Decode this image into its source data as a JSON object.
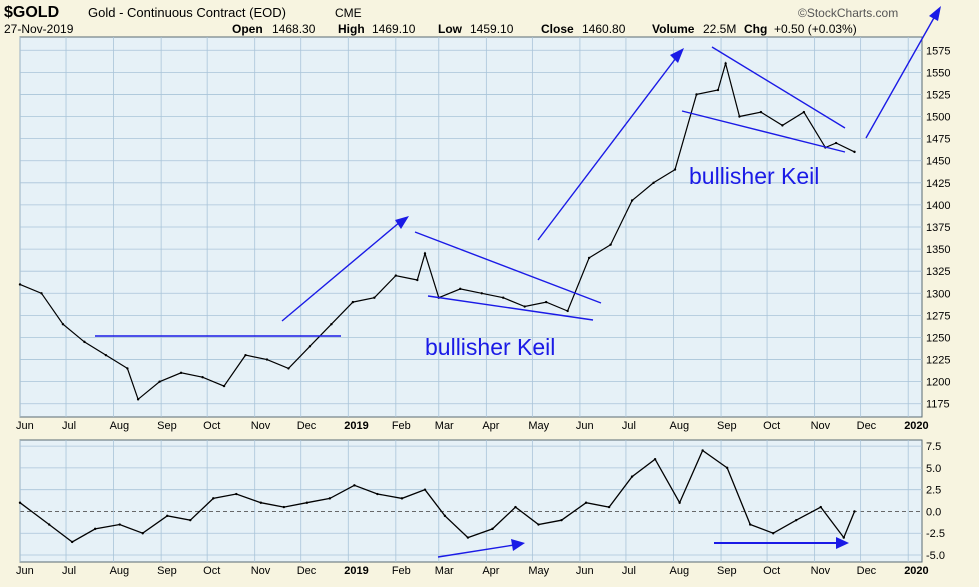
{
  "header": {
    "symbol": "$GOLD",
    "description": "Gold - Continuous Contract (EOD)",
    "exchange": "CME",
    "source": "©StockCharts.com",
    "date": "27-Nov-2019",
    "open_label": "Open",
    "open": "1468.30",
    "high_label": "High",
    "high": "1469.10",
    "low_label": "Low",
    "low": "1459.10",
    "close_label": "Close",
    "close": "1460.80",
    "volume_label": "Volume",
    "volume": "22.5M",
    "chg_label": "Chg",
    "chg": "+0.50 (+0.03%)"
  },
  "colors": {
    "background": "#f7f4e0",
    "panel": "#e6f1f7",
    "grid": "#a9c4d9",
    "price": "#000000",
    "annotation": "#1a1ae6"
  },
  "annotations": {
    "keil_1": "bullisher Keil",
    "keil_2": "bullisher Keil"
  },
  "chart_data": [
    {
      "type": "line",
      "panel": "price",
      "ylim": [
        1160,
        1590
      ],
      "yticks": [
        1175,
        1200,
        1225,
        1250,
        1275,
        1300,
        1325,
        1350,
        1375,
        1400,
        1425,
        1450,
        1475,
        1500,
        1525,
        1550,
        1575
      ],
      "x_tick_labels": [
        "Jun",
        "Jul",
        "Aug",
        "Sep",
        "Oct",
        "Nov",
        "Dec",
        "2019",
        "Feb",
        "Mar",
        "Apr",
        "May",
        "Jun",
        "Jul",
        "Aug",
        "Sep",
        "Oct",
        "Nov",
        "Dec",
        "2020"
      ],
      "x_range": [
        "2018-06-01",
        "2020-01-10"
      ],
      "series": [
        {
          "x": [
            "2018-06-01",
            "2018-06-15",
            "2018-06-29",
            "2018-07-13",
            "2018-07-27",
            "2018-08-10",
            "2018-08-17",
            "2018-08-31",
            "2018-09-14",
            "2018-09-28",
            "2018-10-12",
            "2018-10-26",
            "2018-11-09",
            "2018-11-23",
            "2018-12-07",
            "2018-12-21",
            "2019-01-04",
            "2019-01-18",
            "2019-02-01",
            "2019-02-15",
            "2019-02-20",
            "2019-03-01",
            "2019-03-15",
            "2019-03-29",
            "2019-04-12",
            "2019-04-26",
            "2019-05-10",
            "2019-05-24",
            "2019-06-07",
            "2019-06-21",
            "2019-07-05",
            "2019-07-19",
            "2019-08-02",
            "2019-08-16",
            "2019-08-30",
            "2019-09-04",
            "2019-09-13",
            "2019-09-27",
            "2019-10-11",
            "2019-10-25",
            "2019-11-08",
            "2019-11-15",
            "2019-11-27"
          ],
          "values": [
            1310,
            1300,
            1265,
            1245,
            1230,
            1215,
            1180,
            1200,
            1210,
            1205,
            1195,
            1230,
            1225,
            1215,
            1240,
            1265,
            1290,
            1295,
            1320,
            1315,
            1345,
            1295,
            1305,
            1300,
            1295,
            1285,
            1290,
            1280,
            1340,
            1355,
            1405,
            1425,
            1440,
            1525,
            1530,
            1560,
            1500,
            1505,
            1490,
            1505,
            1465,
            1470,
            1460
          ]
        }
      ],
      "annotations": [
        {
          "text": "bullisher Keil",
          "location": "under Feb–May 2019 wedge"
        },
        {
          "text": "bullisher Keil",
          "location": "under Sep–Nov 2019 wedge"
        }
      ],
      "grid": true
    },
    {
      "type": "line",
      "panel": "oscillator",
      "ylim": [
        -5.8,
        8.2
      ],
      "yticks": [
        -5.0,
        -2.5,
        0.0,
        2.5,
        5.0,
        7.5
      ],
      "x_tick_labels": [
        "Jun",
        "Jul",
        "Aug",
        "Sep",
        "Oct",
        "Nov",
        "Dec",
        "2019",
        "Feb",
        "Mar",
        "Apr",
        "May",
        "Jun",
        "Jul",
        "Aug",
        "Sep",
        "Oct",
        "Nov",
        "Dec",
        "2020"
      ],
      "x_range": [
        "2018-06-01",
        "2020-01-10"
      ],
      "series": [
        {
          "x": [
            "2018-06-01",
            "2018-06-20",
            "2018-07-05",
            "2018-07-20",
            "2018-08-05",
            "2018-08-20",
            "2018-09-05",
            "2018-09-20",
            "2018-10-05",
            "2018-10-20",
            "2018-11-05",
            "2018-11-20",
            "2018-12-05",
            "2018-12-20",
            "2019-01-05",
            "2019-01-20",
            "2019-02-05",
            "2019-02-20",
            "2019-03-05",
            "2019-03-20",
            "2019-04-05",
            "2019-04-20",
            "2019-05-05",
            "2019-05-20",
            "2019-06-05",
            "2019-06-20",
            "2019-07-05",
            "2019-07-20",
            "2019-08-05",
            "2019-08-20",
            "2019-09-05",
            "2019-09-20",
            "2019-10-05",
            "2019-10-20",
            "2019-11-05",
            "2019-11-20",
            "2019-11-27"
          ],
          "values": [
            1.0,
            -1.5,
            -3.5,
            -2.0,
            -1.5,
            -2.5,
            -0.5,
            -1.0,
            1.5,
            2.0,
            1.0,
            0.5,
            1.0,
            1.5,
            3.0,
            2.0,
            1.5,
            2.5,
            -0.5,
            -3.0,
            -2.0,
            0.5,
            -1.5,
            -1.0,
            1.0,
            0.5,
            4.0,
            6.0,
            1.0,
            7.0,
            5.0,
            -1.5,
            -2.5,
            -1.0,
            0.5,
            -3.0,
            0.0
          ]
        }
      ],
      "grid": true
    }
  ]
}
